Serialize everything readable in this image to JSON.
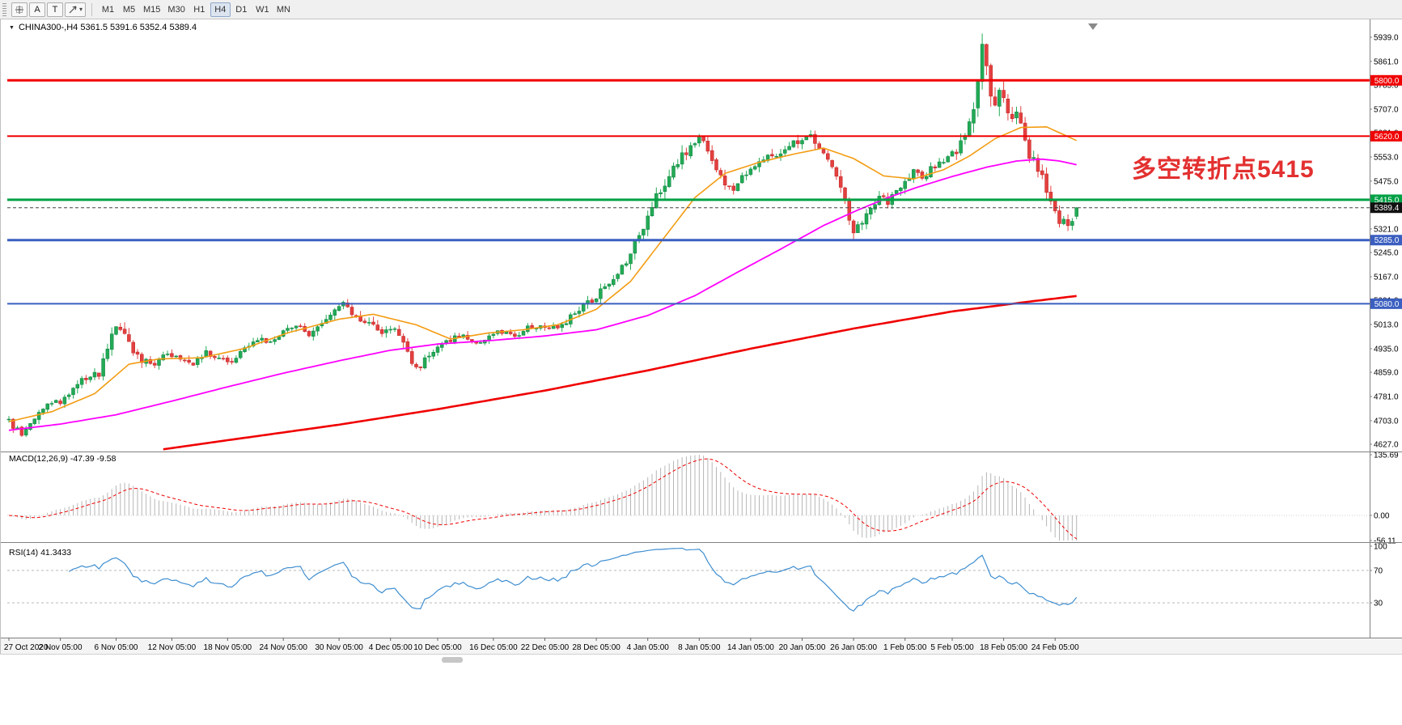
{
  "toolbar": {
    "button_a": "A",
    "button_t": "T",
    "timeframes": [
      "M1",
      "M5",
      "M15",
      "M30",
      "H1",
      "H4",
      "D1",
      "W1",
      "MN"
    ],
    "active_timeframe": "H4"
  },
  "chart": {
    "title": "CHINA300-,H4 5361.5 5391.6 5352.4 5389.4",
    "annotation": {
      "text": "多空转折点5415",
      "color": "#e33030"
    },
    "current_price": {
      "label": "5389.4",
      "value": 5389.4,
      "badge_color": "#111111"
    },
    "levels": [
      {
        "price": 5800.0,
        "label": "5800.0",
        "color": "#f00000",
        "width": 3
      },
      {
        "price": 5620.0,
        "label": "5620.0",
        "color": "#f00000",
        "width": 2
      },
      {
        "price": 5415.0,
        "label": "5415.0",
        "color": "#00a045",
        "width": 3
      },
      {
        "price": 5285.0,
        "label": "5285.0",
        "color": "#3b5fc0",
        "width": 3
      },
      {
        "price": 5080.0,
        "label": "5080.0",
        "color": "#3b5fc0",
        "width": 2
      }
    ],
    "y_ticks": [
      "5939.0",
      "5861.0",
      "5785.0",
      "5707.0",
      "5631.0",
      "5553.0",
      "5475.0",
      "5397.0",
      "5321.0",
      "5245.0",
      "5167.0",
      "5091.0",
      "5013.0",
      "4935.0",
      "4859.0",
      "4781.0",
      "4703.0",
      "4627.0"
    ],
    "x_labels": [
      {
        "bar": 0,
        "label": "27 Oct 2020"
      },
      {
        "bar": 12,
        "label": "2 Nov 05:00"
      },
      {
        "bar": 25,
        "label": "6 Nov 05:00"
      },
      {
        "bar": 38,
        "label": "12 Nov 05:00"
      },
      {
        "bar": 51,
        "label": "18 Nov 05:00"
      },
      {
        "bar": 64,
        "label": "24 Nov 05:00"
      },
      {
        "bar": 77,
        "label": "30 Nov 05:00"
      },
      {
        "bar": 89,
        "label": "4 Dec 05:00"
      },
      {
        "bar": 100,
        "label": "10 Dec 05:00"
      },
      {
        "bar": 113,
        "label": "16 Dec 05:00"
      },
      {
        "bar": 125,
        "label": "22 Dec 05:00"
      },
      {
        "bar": 137,
        "label": "28 Dec 05:00"
      },
      {
        "bar": 149,
        "label": "4 Jan 05:00"
      },
      {
        "bar": 161,
        "label": "8 Jan 05:00"
      },
      {
        "bar": 173,
        "label": "14 Jan 05:00"
      },
      {
        "bar": 185,
        "label": "20 Jan 05:00"
      },
      {
        "bar": 197,
        "label": "26 Jan 05:00"
      },
      {
        "bar": 209,
        "label": "1 Feb 05:00"
      },
      {
        "bar": 220,
        "label": "5 Feb 05:00"
      },
      {
        "bar": 232,
        "label": "18 Feb 05:00"
      },
      {
        "bar": 244,
        "label": "24 Feb 05:00"
      }
    ]
  },
  "macd": {
    "label": "MACD(12,26,9) -47.39 -9.58",
    "params": [
      12,
      26,
      9
    ],
    "main_value": -47.39,
    "signal_value": -9.58,
    "axis_labels": [
      "135.69",
      "0.00",
      "-56.11"
    ],
    "colors": {
      "histogram": "#b6b6b6",
      "signal": "#f00000"
    }
  },
  "rsi": {
    "label": "RSI(14) 41.3433",
    "period": 14,
    "value": 41.3433,
    "axis_labels": [
      "100",
      "70",
      "30"
    ],
    "levels": [
      70,
      30
    ],
    "color": "#3e8ed0"
  },
  "chart_data": {
    "type": "candlestick",
    "symbol": "CHINA300-",
    "timeframe": "H4",
    "bars": 250,
    "price_range": {
      "min": 4627,
      "max": 5939
    },
    "ohlc_last": {
      "open": 5361.5,
      "high": 5391.6,
      "low": 5352.4,
      "close": 5389.4
    },
    "colors": {
      "bull": "#22aa55",
      "bull_stroke": "#0e8040",
      "bear": "#e34040",
      "bear_stroke": "#c02020"
    },
    "close_path": [
      [
        0,
        4700
      ],
      [
        3,
        4660
      ],
      [
        6,
        4710
      ],
      [
        9,
        4750
      ],
      [
        12,
        4765
      ],
      [
        15,
        4805
      ],
      [
        18,
        4840
      ],
      [
        21,
        4855
      ],
      [
        24,
        4985
      ],
      [
        26,
        5005
      ],
      [
        28,
        4945
      ],
      [
        31,
        4898
      ],
      [
        34,
        4885
      ],
      [
        37,
        4925
      ],
      [
        40,
        4903
      ],
      [
        43,
        4890
      ],
      [
        46,
        4922
      ],
      [
        49,
        4912
      ],
      [
        52,
        4896
      ],
      [
        55,
        4938
      ],
      [
        58,
        4966
      ],
      [
        61,
        4955
      ],
      [
        64,
        4988
      ],
      [
        67,
        5006
      ],
      [
        70,
        4986
      ],
      [
        73,
        5022
      ],
      [
        76,
        5062
      ],
      [
        78,
        5088
      ],
      [
        81,
        5038
      ],
      [
        84,
        5014
      ],
      [
        87,
        4988
      ],
      [
        90,
        4996
      ],
      [
        92,
        4944
      ],
      [
        94,
        4888
      ],
      [
        96,
        4880
      ],
      [
        98,
        4922
      ],
      [
        100,
        4940
      ],
      [
        103,
        4966
      ],
      [
        106,
        4982
      ],
      [
        109,
        4956
      ],
      [
        112,
        4976
      ],
      [
        115,
        4992
      ],
      [
        118,
        4976
      ],
      [
        121,
        5002
      ],
      [
        124,
        5012
      ],
      [
        127,
        5002
      ],
      [
        130,
        5022
      ],
      [
        133,
        5062
      ],
      [
        136,
        5092
      ],
      [
        139,
        5132
      ],
      [
        142,
        5182
      ],
      [
        145,
        5242
      ],
      [
        148,
        5332
      ],
      [
        151,
        5432
      ],
      [
        154,
        5492
      ],
      [
        157,
        5552
      ],
      [
        159,
        5592
      ],
      [
        161,
        5622
      ],
      [
        163,
        5562
      ],
      [
        165,
        5502
      ],
      [
        167,
        5472
      ],
      [
        169,
        5442
      ],
      [
        171,
        5482
      ],
      [
        173,
        5522
      ],
      [
        176,
        5547
      ],
      [
        179,
        5562
      ],
      [
        182,
        5592
      ],
      [
        185,
        5607
      ],
      [
        187,
        5622
      ],
      [
        189,
        5582
      ],
      [
        191,
        5547
      ],
      [
        193,
        5482
      ],
      [
        195,
        5402
      ],
      [
        197,
        5312
      ],
      [
        199,
        5332
      ],
      [
        201,
        5392
      ],
      [
        203,
        5432
      ],
      [
        205,
        5402
      ],
      [
        207,
        5442
      ],
      [
        209,
        5472
      ],
      [
        211,
        5502
      ],
      [
        213,
        5482
      ],
      [
        215,
        5512
      ],
      [
        217,
        5532
      ],
      [
        219,
        5552
      ],
      [
        221,
        5572
      ],
      [
        223,
        5632
      ],
      [
        225,
        5722
      ],
      [
        226,
        5822
      ],
      [
        227,
        5921
      ],
      [
        228,
        5862
      ],
      [
        229,
        5752
      ],
      [
        230,
        5712
      ],
      [
        231,
        5782
      ],
      [
        232,
        5742
      ],
      [
        233,
        5712
      ],
      [
        234,
        5672
      ],
      [
        235,
        5692
      ],
      [
        236,
        5652
      ],
      [
        237,
        5602
      ],
      [
        238,
        5562
      ],
      [
        239,
        5542
      ],
      [
        240,
        5502
      ],
      [
        241,
        5482
      ],
      [
        242,
        5442
      ],
      [
        243,
        5412
      ],
      [
        244,
        5372
      ],
      [
        245,
        5342
      ],
      [
        246,
        5362
      ],
      [
        247,
        5332
      ],
      [
        248,
        5356
      ],
      [
        249,
        5389.4
      ]
    ],
    "volatility_path": [
      [
        0,
        38
      ],
      [
        20,
        48
      ],
      [
        26,
        62
      ],
      [
        34,
        42
      ],
      [
        60,
        36
      ],
      [
        78,
        42
      ],
      [
        94,
        52
      ],
      [
        110,
        32
      ],
      [
        125,
        32
      ],
      [
        137,
        46
      ],
      [
        145,
        62
      ],
      [
        155,
        72
      ],
      [
        163,
        58
      ],
      [
        175,
        46
      ],
      [
        187,
        52
      ],
      [
        197,
        62
      ],
      [
        205,
        46
      ],
      [
        219,
        48
      ],
      [
        221,
        60
      ],
      [
        227,
        95
      ],
      [
        231,
        85
      ],
      [
        241,
        68
      ],
      [
        249,
        40
      ]
    ],
    "overlays": {
      "ma_fast": {
        "color": "#f39c12",
        "width": 1.6,
        "points": [
          [
            0,
            4700
          ],
          [
            10,
            4732
          ],
          [
            20,
            4790
          ],
          [
            28,
            4885
          ],
          [
            35,
            4902
          ],
          [
            45,
            4906
          ],
          [
            55,
            4936
          ],
          [
            65,
            4986
          ],
          [
            77,
            5030
          ],
          [
            85,
            5046
          ],
          [
            95,
            5012
          ],
          [
            103,
            4966
          ],
          [
            112,
            4986
          ],
          [
            120,
            4996
          ],
          [
            128,
            5012
          ],
          [
            137,
            5062
          ],
          [
            145,
            5152
          ],
          [
            152,
            5278
          ],
          [
            160,
            5422
          ],
          [
            167,
            5500
          ],
          [
            175,
            5536
          ],
          [
            183,
            5562
          ],
          [
            190,
            5582
          ],
          [
            197,
            5548
          ],
          [
            204,
            5492
          ],
          [
            211,
            5482
          ],
          [
            218,
            5512
          ],
          [
            224,
            5556
          ],
          [
            230,
            5612
          ],
          [
            236,
            5648
          ],
          [
            242,
            5650
          ],
          [
            249,
            5606
          ]
        ]
      },
      "ma_mid": {
        "color": "#ff00ff",
        "width": 1.8,
        "points": [
          [
            0,
            4672
          ],
          [
            12,
            4692
          ],
          [
            25,
            4722
          ],
          [
            38,
            4766
          ],
          [
            51,
            4812
          ],
          [
            64,
            4856
          ],
          [
            77,
            4896
          ],
          [
            89,
            4930
          ],
          [
            100,
            4950
          ],
          [
            113,
            4962
          ],
          [
            125,
            4976
          ],
          [
            137,
            4996
          ],
          [
            149,
            5042
          ],
          [
            160,
            5106
          ],
          [
            170,
            5182
          ],
          [
            180,
            5256
          ],
          [
            190,
            5332
          ],
          [
            197,
            5376
          ],
          [
            205,
            5422
          ],
          [
            212,
            5456
          ],
          [
            220,
            5490
          ],
          [
            228,
            5520
          ],
          [
            235,
            5540
          ],
          [
            241,
            5546
          ],
          [
            245,
            5540
          ],
          [
            249,
            5528
          ]
        ]
      },
      "ma_slow": {
        "color": "#f00000",
        "width": 2.6,
        "points": [
          [
            28,
            4595
          ],
          [
            51,
            4640
          ],
          [
            77,
            4690
          ],
          [
            100,
            4740
          ],
          [
            125,
            4800
          ],
          [
            149,
            4865
          ],
          [
            173,
            4935
          ],
          [
            197,
            5000
          ],
          [
            220,
            5055
          ],
          [
            237,
            5085
          ],
          [
            249,
            5105
          ]
        ]
      }
    }
  }
}
